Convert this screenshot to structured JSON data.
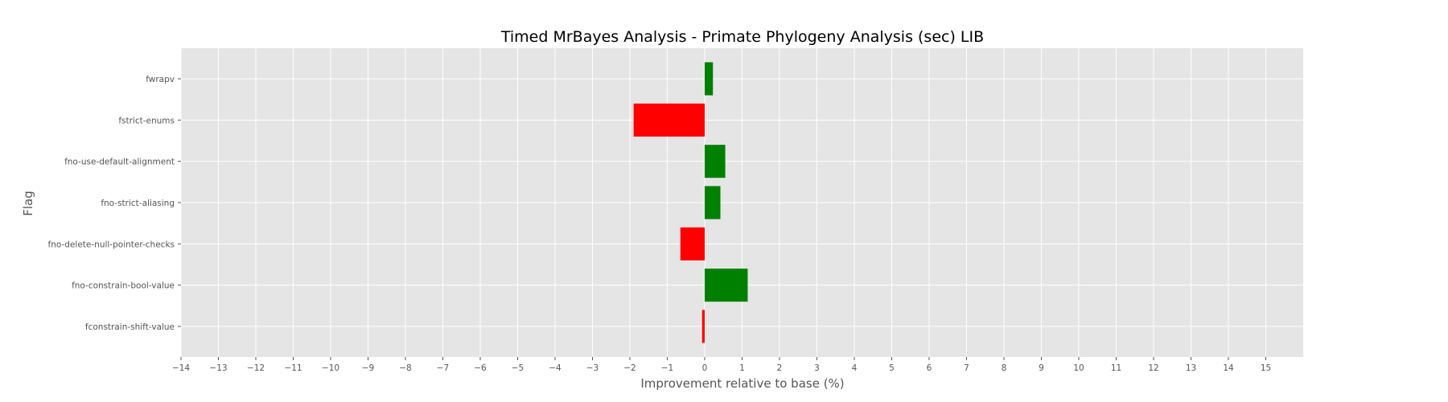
{
  "chart_data": {
    "type": "bar",
    "orientation": "horizontal",
    "title": "Timed MrBayes Analysis - Primate Phylogeny Analysis (sec) LIB",
    "xlabel": "Improvement relative to base (%)",
    "ylabel": "Flag",
    "xlim": [
      -14,
      16
    ],
    "xticks": [
      -14,
      -13,
      -12,
      -11,
      -10,
      -9,
      -8,
      -7,
      -6,
      -5,
      -4,
      -3,
      -2,
      -1,
      0,
      1,
      2,
      3,
      4,
      5,
      6,
      7,
      8,
      9,
      10,
      11,
      12,
      13,
      14,
      15
    ],
    "categories": [
      "fwrapv",
      "fstrict-enums",
      "fno-use-default-alignment",
      "fno-strict-aliasing",
      "fno-delete-null-pointer-checks",
      "fno-constrain-bool-value",
      "fconstrain-shift-value"
    ],
    "values": [
      0.22,
      -1.9,
      0.55,
      0.42,
      -0.65,
      1.15,
      -0.07
    ],
    "grid": true,
    "colors": {
      "positive": "#008000",
      "negative": "#ff0000",
      "plot_background": "#e5e5e5",
      "grid": "#ffffff"
    }
  }
}
